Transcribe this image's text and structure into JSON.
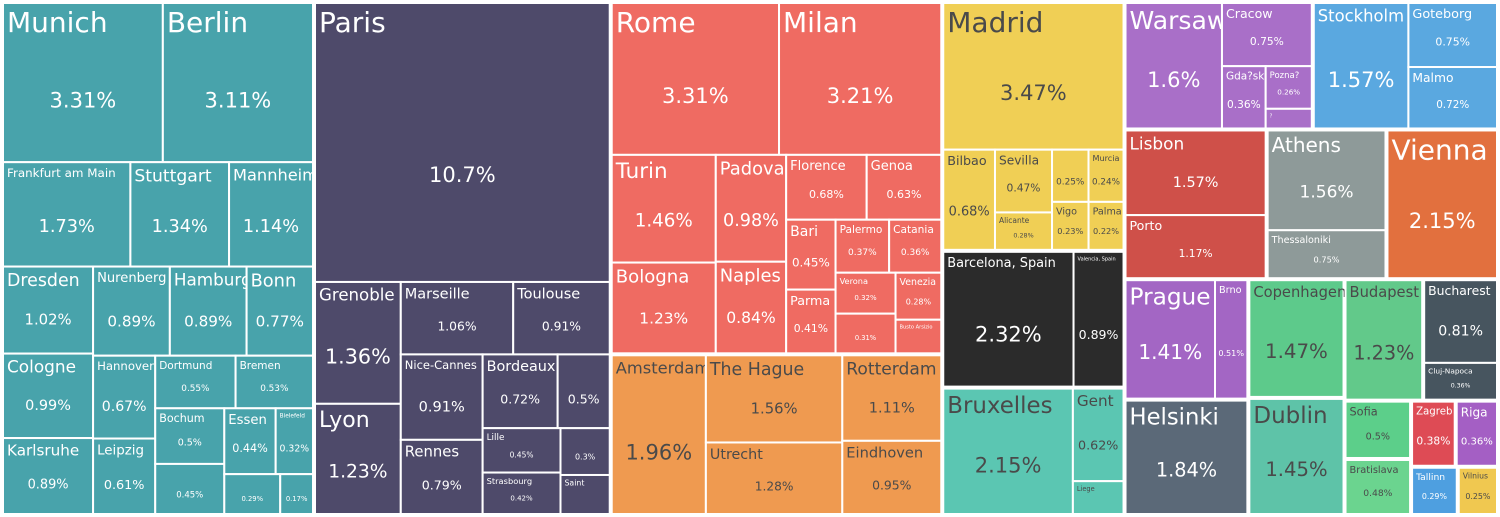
{
  "chart_data": {
    "type": "treemap",
    "groups": [
      {
        "color": "#48a3ab",
        "categories": [
          "Munich",
          "Berlin",
          "Frankfurt am Main",
          "Stuttgart",
          "Mannheim",
          "Dresden",
          "Cologne",
          "Karlsruhe",
          "Nurenberg",
          "Hamburg",
          "Bonn",
          "Hannover",
          "Leipzig",
          "Dortmund",
          "Bremen",
          "Bochum",
          null,
          "Essen",
          "Bielefeld",
          null,
          null
        ],
        "values": [
          3.31,
          3.11,
          1.73,
          1.34,
          1.14,
          1.02,
          0.99,
          0.89,
          0.89,
          0.89,
          0.77,
          0.67,
          0.61,
          0.55,
          0.53,
          0.5,
          0.45,
          0.44,
          0.32,
          0.29,
          0.17
        ],
        "value_labels": [
          "3.31%",
          "3.11%",
          "1.73%",
          "1.34%",
          "1.14%",
          "1.02%",
          "0.99%",
          "0.89%",
          "0.89%",
          "0.89%",
          "0.77%",
          "0.67%",
          "0.61%",
          "0.55%",
          "0.53%",
          "0.5%",
          "0.45%",
          "0.44%",
          "0.32%",
          "0.29%",
          "0.17%"
        ]
      },
      {
        "color": "#4e4a6a",
        "categories": [
          "Paris",
          "Grenoble",
          "Lyon",
          "Marseille",
          "Toulouse",
          "Nice-Cannes",
          "Rennes",
          "Bordeaux",
          null,
          "Lille",
          "Strasbourg",
          null,
          "Saint"
        ],
        "values": [
          10.7,
          1.36,
          1.23,
          1.06,
          0.91,
          0.91,
          0.79,
          0.72,
          0.5,
          0.45,
          0.42,
          0.3,
          0.25
        ],
        "value_labels": [
          "10.7%",
          "1.36%",
          "1.23%",
          "1.06%",
          "0.91%",
          "0.91%",
          "0.79%",
          "0.72%",
          "0.5%",
          "0.45%",
          "0.42%",
          "0.3%",
          null
        ]
      },
      {
        "color": "#ef6b62",
        "categories": [
          "Rome",
          "Milan",
          "Turin",
          "Bologna",
          "Padova",
          "Naples",
          "Florence",
          "Genoa",
          "Bari",
          "Parma",
          "Palermo",
          "Catania",
          "Verona",
          null,
          "Venezia",
          "Busto Arsizio"
        ],
        "values": [
          3.31,
          3.21,
          1.46,
          1.23,
          0.98,
          0.84,
          0.68,
          0.63,
          0.45,
          0.41,
          0.37,
          0.36,
          0.32,
          0.31,
          0.28,
          0.2
        ],
        "value_labels": [
          "3.31%",
          "3.21%",
          "1.46%",
          "1.23%",
          "0.98%",
          "0.84%",
          "0.68%",
          "0.63%",
          "0.45%",
          "0.41%",
          "0.37%",
          "0.36%",
          "0.32%",
          "0.31%",
          "0.28%",
          null
        ]
      },
      {
        "color": "#ef9a50",
        "categories": [
          "Amsterdam",
          "The Hague",
          "Utrecht",
          "Rotterdam",
          "Eindhoven"
        ],
        "values": [
          1.96,
          1.56,
          1.28,
          1.11,
          0.95
        ],
        "value_labels": [
          "1.96%",
          "1.56%",
          "1.28%",
          "1.11%",
          "0.95%"
        ]
      },
      {
        "color": "#f0cf55",
        "categories": [
          "Madrid",
          "Bilbao",
          "Sevilla",
          "Alicante",
          null,
          "Murcia",
          "Vigo",
          "Palma"
        ],
        "values": [
          3.47,
          0.68,
          0.47,
          0.28,
          0.25,
          0.24,
          0.23,
          0.22
        ],
        "value_labels": [
          "3.47%",
          "0.68%",
          "0.47%",
          "0.28%",
          "0.25%",
          "0.24%",
          "0.23%",
          "0.22%"
        ]
      },
      {
        "color": "#2b2b2b",
        "categories": [
          "Barcelona, Spain",
          "Valencia, Spain"
        ],
        "values": [
          2.32,
          0.89
        ],
        "value_labels": [
          "2.32%",
          "0.89%"
        ]
      },
      {
        "color": "#5bc6b2",
        "categories": [
          "Bruxelles",
          "Gent",
          "Liege"
        ],
        "values": [
          2.15,
          0.62,
          0.22
        ],
        "value_labels": [
          "2.15%",
          "0.62%",
          null
        ]
      },
      {
        "color": "#a96fc8",
        "categories": [
          "Warsaw",
          "Cracow",
          "Gda?sk",
          "Pozna?",
          "?"
        ],
        "values": [
          1.6,
          0.75,
          0.36,
          0.26,
          0.12
        ],
        "value_labels": [
          "1.6%",
          "0.75%",
          "0.36%",
          "0.26%",
          null
        ]
      },
      {
        "color": "#5aa8e0",
        "categories": [
          "Stockholm",
          "Goteborg",
          "Malmo"
        ],
        "values": [
          1.57,
          0.75,
          0.72
        ],
        "value_labels": [
          "1.57%",
          "0.75%",
          "0.72%"
        ]
      },
      {
        "color": "#cf5049",
        "categories": [
          "Lisbon",
          "Porto"
        ],
        "values": [
          1.57,
          1.17
        ],
        "value_labels": [
          "1.57%",
          "1.17%"
        ]
      },
      {
        "color": "#8e9a99",
        "categories": [
          "Athens",
          "Thessaloniki"
        ],
        "values": [
          1.56,
          0.75
        ],
        "value_labels": [
          "1.56%",
          "0.75%"
        ]
      },
      {
        "color": "#e2703e",
        "categories": [
          "Vienna"
        ],
        "values": [
          2.15
        ],
        "value_labels": [
          "2.15%"
        ]
      },
      {
        "color": "#a366c4",
        "categories": [
          "Prague",
          "Brno"
        ],
        "values": [
          1.41,
          0.51
        ],
        "value_labels": [
          "1.41%",
          "0.51%"
        ]
      },
      {
        "color": "#5b6978",
        "categories": [
          "Helsinki"
        ],
        "values": [
          1.84
        ],
        "value_labels": [
          "1.84%"
        ]
      },
      {
        "color": "#5dca8b",
        "categories": [
          "Copenhagen"
        ],
        "values": [
          1.47
        ],
        "value_labels": [
          "1.47%"
        ]
      },
      {
        "color": "#5ec3a8",
        "categories": [
          "Dublin"
        ],
        "values": [
          1.45
        ],
        "value_labels": [
          "1.45%"
        ]
      },
      {
        "color": "#62c98a",
        "categories": [
          "Budapest"
        ],
        "values": [
          1.23
        ],
        "value_labels": [
          "1.23%"
        ]
      },
      {
        "color": "#47555f",
        "categories": [
          "Bucharest",
          "Cluj-Napoca"
        ],
        "values": [
          0.81,
          0.36
        ],
        "value_labels": [
          "0.81%",
          "0.36%"
        ]
      },
      {
        "color": "#5ccf8a",
        "categories": [
          "Sofia"
        ],
        "values": [
          0.5
        ],
        "value_labels": [
          "0.5%"
        ]
      },
      {
        "color": "#6bd48f",
        "categories": [
          "Bratislava"
        ],
        "values": [
          0.48
        ],
        "value_labels": [
          "0.48%"
        ]
      },
      {
        "color": "#de4b55",
        "categories": [
          "Zagreb"
        ],
        "values": [
          0.38
        ],
        "value_labels": [
          "0.38%"
        ]
      },
      {
        "color": "#a45fc4",
        "categories": [
          "Riga"
        ],
        "values": [
          0.36
        ],
        "value_labels": [
          "0.36%"
        ]
      },
      {
        "color": "#4e9fe0",
        "categories": [
          "Tallinn"
        ],
        "values": [
          0.29
        ],
        "value_labels": [
          "0.29%"
        ]
      },
      {
        "color": "#f0c850",
        "categories": [
          "Vilnius"
        ],
        "values": [
          0.25
        ],
        "value_labels": [
          "0.25%"
        ]
      }
    ]
  }
}
